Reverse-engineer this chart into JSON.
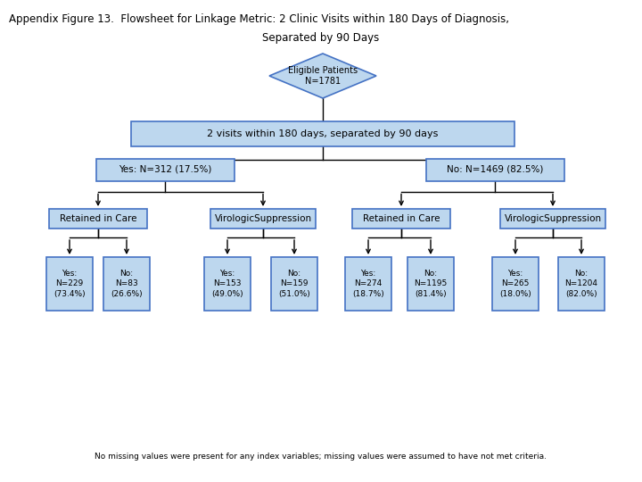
{
  "title_line1": "Appendix Figure 13.  Flowsheet for Linkage Metric: 2 Clinic Visits within 180 Days of Diagnosis,",
  "title_line2": "Separated by 90 Days",
  "diamond_text": "Eligible Patients\nN=1781",
  "root_text": "2 visits within 180 days, separated by 90 days",
  "yes_text": "Yes: N=312 (17.5%)",
  "no_text": "No: N=1469 (82.5%)",
  "yes_ric_text": "Retained in Care",
  "yes_vs_text": "VirologicSuppression",
  "no_ric_text": "Retained in Care",
  "no_vs_text": "VirologicSuppression",
  "yes_ric_yes_text": "Yes:\nN=229\n(73.4%)",
  "yes_ric_no_text": "No:\nN=83\n(26.6%)",
  "yes_vs_yes_text": "Yes:\nN=153\n(49.0%)",
  "yes_vs_no_text": "No:\nN=159\n(51.0%)",
  "no_ric_yes_text": "Yes:\nN=274\n(18.7%)",
  "no_ric_no_text": "No:\nN=1195\n(81.4%)",
  "no_vs_yes_text": "Yes:\nN=265\n(18.0%)",
  "no_vs_no_text": "No:\nN=1204\n(82.0%)",
  "footnote": "No missing values were present for any index variables; missing values were assumed to have not met criteria.",
  "edge_color": "#4472C4",
  "face_color": "#BDD7EE",
  "bg_color": "#FFFFFF"
}
